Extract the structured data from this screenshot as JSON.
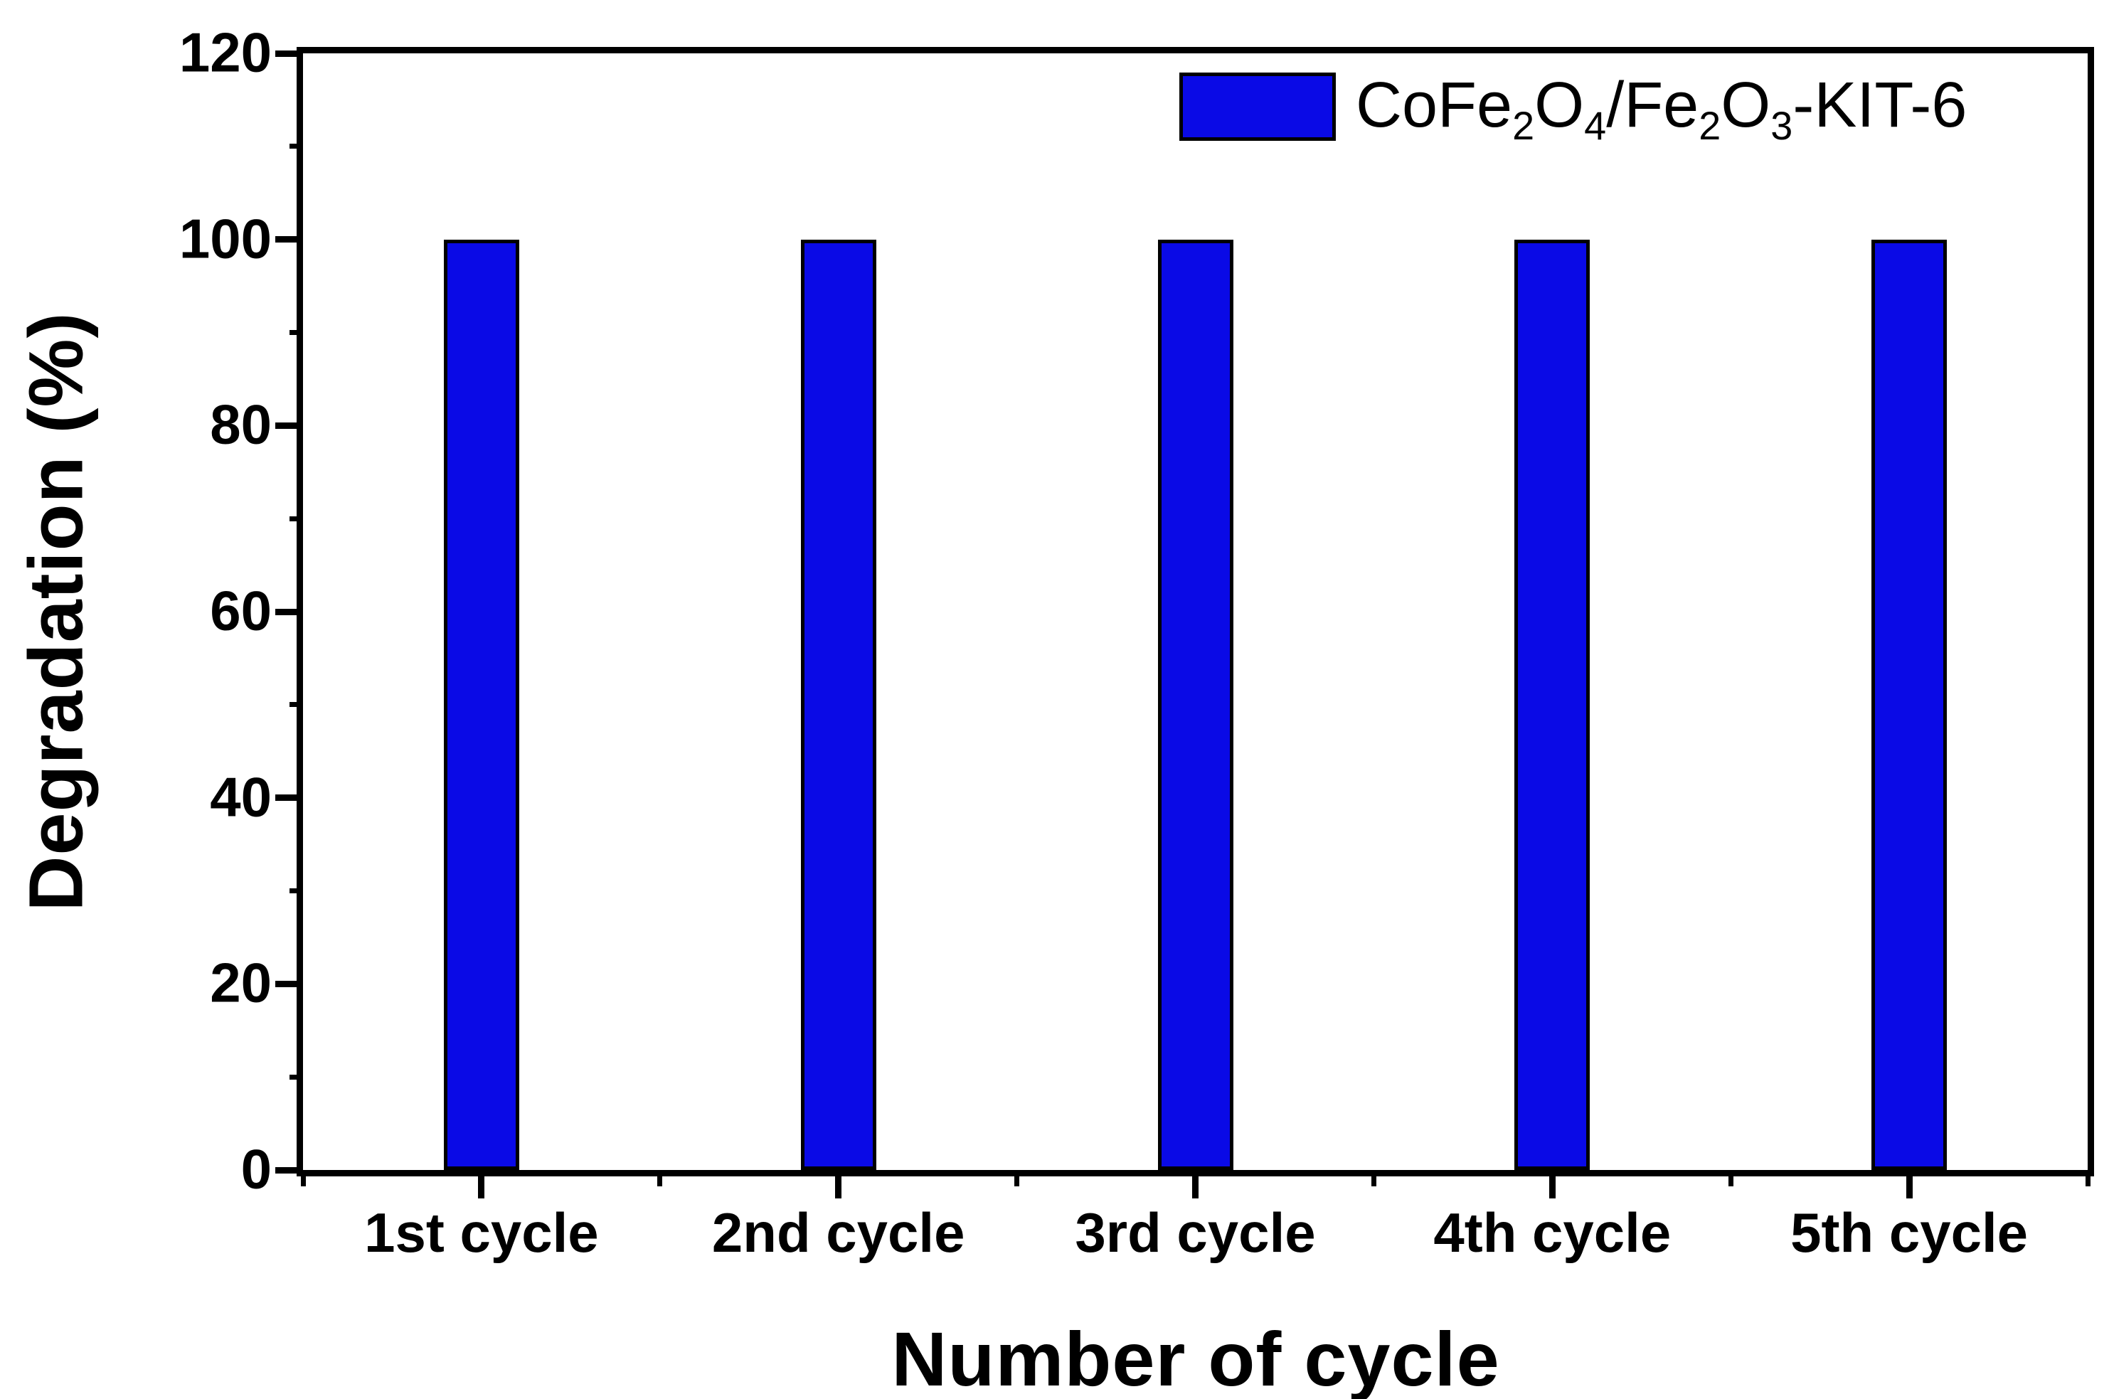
{
  "chart_data": {
    "type": "bar",
    "title": "",
    "xlabel": "Number of cycle",
    "ylabel": "Degradation (%)",
    "categories": [
      "1st cycle",
      "2nd cycle",
      "3rd cycle",
      "4th cycle",
      "5th cycle"
    ],
    "values": [
      100,
      100,
      100,
      100,
      100
    ],
    "series": [
      {
        "name": "CoFe2O4/Fe2O3-KIT-6",
        "values": [
          100,
          100,
          100,
          100,
          100
        ]
      }
    ],
    "legend": {
      "label_plain": "CoFe2O4/Fe2O3-KIT-6",
      "label_segments": [
        {
          "t": "CoFe"
        },
        {
          "t": "2",
          "sub": true
        },
        {
          "t": "O"
        },
        {
          "t": "4",
          "sub": true
        },
        {
          "t": "/Fe"
        },
        {
          "t": "2",
          "sub": true
        },
        {
          "t": "O"
        },
        {
          "t": "3",
          "sub": true
        },
        {
          "t": "-KIT-6"
        }
      ],
      "position": "top-right"
    },
    "ylim": [
      0,
      120
    ],
    "yticks": [
      0,
      20,
      40,
      60,
      80,
      100,
      120
    ],
    "minor_yticks": [
      10,
      30,
      50,
      70,
      90,
      110
    ],
    "grid": false,
    "colors": {
      "bar_fill": "#0A0AE6",
      "bar_border": "#000000",
      "axis": "#000000",
      "background": "#ffffff"
    }
  }
}
